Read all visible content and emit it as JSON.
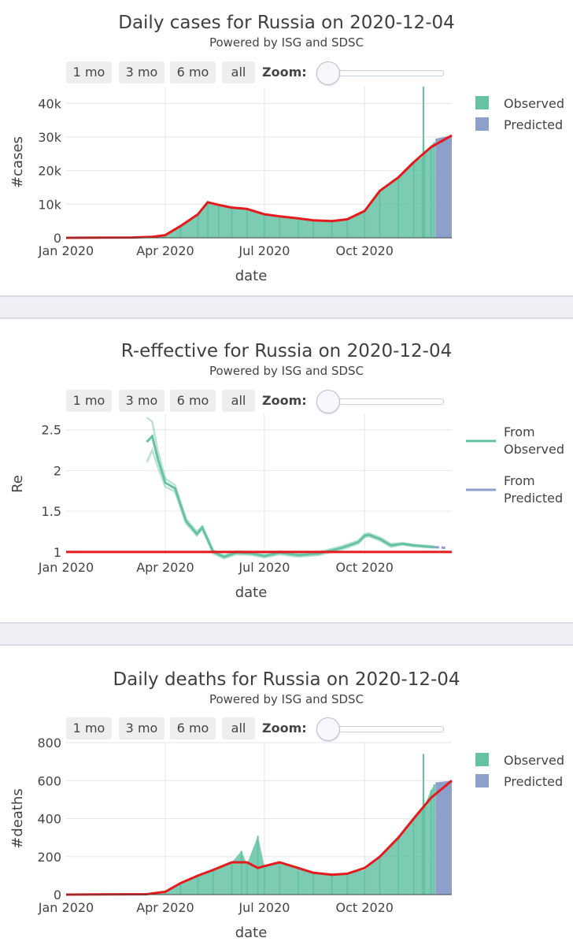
{
  "controls": {
    "buttons": [
      "1 mo",
      "3 mo",
      "6 mo",
      "all"
    ],
    "zoom_label": "Zoom:"
  },
  "colors": {
    "observed": "#66c2a5",
    "predicted": "#8da0cb",
    "trend": "#e41a1c"
  },
  "chart_data": [
    {
      "type": "bar",
      "title": "Daily cases for Russia on 2020-12-04",
      "subtitle": "Powered by ISG and SDSC",
      "xlabel": "date",
      "ylabel": "#cases",
      "x_ticks": [
        "Jan 2020",
        "Apr 2020",
        "Jul 2020",
        "Oct 2020"
      ],
      "y_ticks": [
        "0",
        "10k",
        "20k",
        "30k",
        "40k"
      ],
      "ylim": [
        0,
        45000
      ],
      "xlim": [
        "2020-01-01",
        "2020-12-20"
      ],
      "grid": true,
      "legend": {
        "position": "top-right",
        "entries": [
          "Observed",
          "Predicted"
        ]
      },
      "series": [
        {
          "name": "Observed",
          "kind": "bar",
          "x": [
            "2020-01-01",
            "2020-03-01",
            "2020-03-20",
            "2020-04-01",
            "2020-04-15",
            "2020-05-01",
            "2020-05-10",
            "2020-05-20",
            "2020-06-01",
            "2020-06-15",
            "2020-07-01",
            "2020-07-15",
            "2020-08-01",
            "2020-08-15",
            "2020-09-01",
            "2020-09-15",
            "2020-10-01",
            "2020-10-15",
            "2020-11-01",
            "2020-11-15",
            "2020-11-23",
            "2020-11-24",
            "2020-11-25",
            "2020-12-01",
            "2020-12-04"
          ],
          "y": [
            0,
            100,
            200,
            700,
            3500,
            7000,
            10500,
            9500,
            9000,
            8500,
            7000,
            6500,
            5800,
            5200,
            5000,
            5500,
            8000,
            14000,
            18000,
            22500,
            24000,
            45000,
            25000,
            27500,
            28500
          ]
        },
        {
          "name": "Predicted",
          "kind": "bar",
          "x": [
            "2020-12-05",
            "2020-12-20"
          ],
          "y": [
            29500,
            30500
          ]
        },
        {
          "name": "Trend",
          "kind": "line",
          "x": [
            "2020-01-01",
            "2020-03-01",
            "2020-03-20",
            "2020-04-01",
            "2020-04-15",
            "2020-05-01",
            "2020-05-10",
            "2020-05-20",
            "2020-06-01",
            "2020-06-15",
            "2020-07-01",
            "2020-07-15",
            "2020-08-01",
            "2020-08-15",
            "2020-09-01",
            "2020-09-15",
            "2020-10-01",
            "2020-10-15",
            "2020-11-01",
            "2020-11-15",
            "2020-12-01",
            "2020-12-20"
          ],
          "y": [
            0,
            100,
            300,
            800,
            3500,
            7000,
            10600,
            9800,
            9000,
            8600,
            7000,
            6400,
            5800,
            5200,
            5000,
            5500,
            8000,
            14000,
            18000,
            22500,
            27000,
            30500
          ]
        }
      ]
    },
    {
      "type": "line",
      "title": "R-effective for Russia on 2020-12-04",
      "subtitle": "Powered by ISG and SDSC",
      "xlabel": "date",
      "ylabel": "Re",
      "x_ticks": [
        "Jan 2020",
        "Apr 2020",
        "Jul 2020",
        "Oct 2020"
      ],
      "y_ticks": [
        "1",
        "1.5",
        "2",
        "2.5"
      ],
      "ylim": [
        0.97,
        2.7
      ],
      "xlim": [
        "2020-01-01",
        "2020-12-20"
      ],
      "grid": true,
      "legend": {
        "position": "top-right",
        "entries": [
          "From Observed",
          "From Predicted"
        ]
      },
      "series": [
        {
          "name": "From Observed",
          "kind": "line",
          "x": [
            "2020-03-15",
            "2020-03-20",
            "2020-03-25",
            "2020-04-01",
            "2020-04-10",
            "2020-04-20",
            "2020-04-30",
            "2020-05-05",
            "2020-05-15",
            "2020-05-25",
            "2020-06-05",
            "2020-06-20",
            "2020-07-01",
            "2020-07-15",
            "2020-08-01",
            "2020-08-20",
            "2020-09-10",
            "2020-09-25",
            "2020-10-01",
            "2020-10-05",
            "2020-10-15",
            "2020-10-25",
            "2020-11-05",
            "2020-11-15",
            "2020-11-25",
            "2020-12-04"
          ],
          "y": [
            2.35,
            2.42,
            2.15,
            1.85,
            1.78,
            1.38,
            1.22,
            1.3,
            1.0,
            0.94,
            0.99,
            0.98,
            0.95,
            0.99,
            0.96,
            0.98,
            1.05,
            1.12,
            1.2,
            1.21,
            1.16,
            1.08,
            1.1,
            1.08,
            1.07,
            1.06
          ]
        },
        {
          "name": "From Observed upper",
          "kind": "band",
          "x": [
            "2020-03-15",
            "2020-03-20",
            "2020-03-25",
            "2020-04-01",
            "2020-04-10",
            "2020-04-20",
            "2020-04-30",
            "2020-05-05",
            "2020-05-15",
            "2020-05-25",
            "2020-06-05",
            "2020-06-20",
            "2020-07-01",
            "2020-07-15",
            "2020-08-01",
            "2020-08-20",
            "2020-09-10",
            "2020-09-25",
            "2020-10-01",
            "2020-10-05",
            "2020-10-15",
            "2020-10-25",
            "2020-11-05",
            "2020-11-15",
            "2020-11-25",
            "2020-12-04"
          ],
          "y": [
            2.65,
            2.6,
            2.25,
            1.9,
            1.82,
            1.41,
            1.25,
            1.32,
            1.02,
            0.96,
            1.01,
            1.0,
            0.97,
            1.01,
            0.98,
            1.0,
            1.07,
            1.14,
            1.22,
            1.23,
            1.18,
            1.1,
            1.11,
            1.09,
            1.08,
            1.07
          ]
        },
        {
          "name": "From Observed lower",
          "kind": "band",
          "x": [
            "2020-03-15",
            "2020-03-20",
            "2020-03-25",
            "2020-04-01",
            "2020-04-10",
            "2020-04-20",
            "2020-04-30",
            "2020-05-05",
            "2020-05-15",
            "2020-05-25",
            "2020-06-05",
            "2020-06-20",
            "2020-07-01",
            "2020-07-15",
            "2020-08-01",
            "2020-08-20",
            "2020-09-10",
            "2020-09-25",
            "2020-10-01",
            "2020-10-05",
            "2020-10-15",
            "2020-10-25",
            "2020-11-05",
            "2020-11-15",
            "2020-11-25",
            "2020-12-04"
          ],
          "y": [
            2.1,
            2.25,
            2.05,
            1.8,
            1.74,
            1.35,
            1.2,
            1.28,
            0.98,
            0.92,
            0.97,
            0.96,
            0.93,
            0.97,
            0.94,
            0.96,
            1.03,
            1.1,
            1.18,
            1.19,
            1.14,
            1.06,
            1.09,
            1.07,
            1.06,
            1.05
          ]
        },
        {
          "name": "From Predicted",
          "kind": "line",
          "x": [
            "2020-12-04",
            "2020-12-14"
          ],
          "y": [
            1.06,
            1.05
          ]
        },
        {
          "name": "Re = 1",
          "kind": "hline",
          "x": [
            "2020-01-01",
            "2020-12-20"
          ],
          "y": [
            1,
            1
          ]
        }
      ]
    },
    {
      "type": "bar",
      "title": "Daily deaths for Russia on 2020-12-04",
      "subtitle": "Powered by ISG and SDSC",
      "xlabel": "date",
      "ylabel": "#deaths",
      "x_ticks": [
        "Jan 2020",
        "Apr 2020",
        "Jul 2020",
        "Oct 2020"
      ],
      "y_ticks": [
        "0",
        "200",
        "400",
        "600",
        "800"
      ],
      "ylim": [
        0,
        800
      ],
      "xlim": [
        "2020-01-01",
        "2020-12-20"
      ],
      "grid": true,
      "legend": {
        "position": "top-right",
        "entries": [
          "Observed",
          "Predicted"
        ]
      },
      "series": [
        {
          "name": "Observed",
          "kind": "bar",
          "x": [
            "2020-01-01",
            "2020-03-15",
            "2020-04-01",
            "2020-04-15",
            "2020-05-01",
            "2020-05-15",
            "2020-06-01",
            "2020-06-10",
            "2020-06-15",
            "2020-06-25",
            "2020-07-01",
            "2020-07-15",
            "2020-08-01",
            "2020-08-15",
            "2020-09-01",
            "2020-09-15",
            "2020-10-01",
            "2020-10-15",
            "2020-11-01",
            "2020-11-15",
            "2020-11-23",
            "2020-11-24",
            "2020-11-25",
            "2020-12-01",
            "2020-12-04"
          ],
          "y": [
            0,
            1,
            10,
            60,
            100,
            130,
            170,
            230,
            160,
            310,
            150,
            170,
            140,
            120,
            105,
            110,
            130,
            200,
            300,
            400,
            450,
            740,
            470,
            550,
            580
          ]
        },
        {
          "name": "Predicted",
          "kind": "bar",
          "x": [
            "2020-12-05",
            "2020-12-20"
          ],
          "y": [
            590,
            600
          ]
        },
        {
          "name": "Trend",
          "kind": "line",
          "x": [
            "2020-01-01",
            "2020-03-15",
            "2020-04-01",
            "2020-04-15",
            "2020-05-01",
            "2020-05-15",
            "2020-06-01",
            "2020-06-15",
            "2020-06-25",
            "2020-07-01",
            "2020-07-15",
            "2020-08-01",
            "2020-08-15",
            "2020-09-01",
            "2020-09-15",
            "2020-10-01",
            "2020-10-15",
            "2020-11-01",
            "2020-11-15",
            "2020-12-01",
            "2020-12-20"
          ],
          "y": [
            0,
            2,
            15,
            60,
            100,
            130,
            170,
            170,
            140,
            150,
            170,
            140,
            115,
            105,
            110,
            140,
            200,
            300,
            400,
            510,
            600
          ]
        }
      ]
    }
  ]
}
